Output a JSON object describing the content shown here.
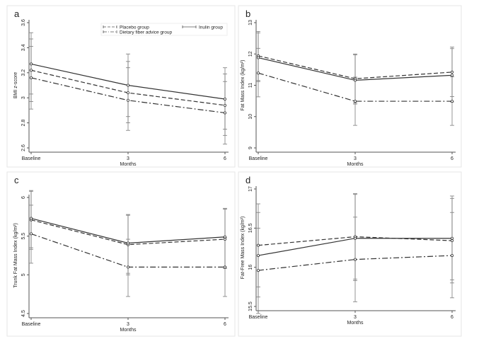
{
  "chart_data": [
    {
      "type": "line",
      "panel_label": "a",
      "xlabel": "Months",
      "ylabel": "BMI z-score",
      "categories": [
        "Baseline",
        "3",
        "6"
      ],
      "ylim": [
        2.6,
        3.6
      ],
      "yticks": [
        "2.6",
        "2.8",
        "3",
        "3.2",
        "3.4",
        "3.6"
      ],
      "legend": {
        "position": "top-right",
        "entries": [
          "Placebo group",
          "Inulin group",
          "Dietary fiber advice group"
        ]
      },
      "series": [
        {
          "name": "Placebo group",
          "style": "dashed",
          "values": [
            3.22,
            3.04,
            2.94
          ],
          "ci_low": [
            2.97,
            2.8,
            2.7
          ],
          "ci_high": [
            3.47,
            3.29,
            3.19
          ]
        },
        {
          "name": "Inulin group",
          "style": "solid",
          "values": [
            3.27,
            3.1,
            2.99
          ],
          "ci_low": [
            3.03,
            2.85,
            2.75
          ],
          "ci_high": [
            3.52,
            3.35,
            3.24
          ]
        },
        {
          "name": "Dietary fiber advice group",
          "style": "dashdot",
          "values": [
            3.16,
            2.98,
            2.88
          ],
          "ci_low": [
            2.91,
            2.74,
            2.63
          ],
          "ci_high": [
            3.41,
            3.24,
            3.13
          ]
        }
      ]
    },
    {
      "type": "line",
      "panel_label": "b",
      "xlabel": "Months",
      "ylabel": "Fat Mass Index (kg/m²)",
      "categories": [
        "Baseline",
        "3",
        "6"
      ],
      "ylim": [
        9,
        13
      ],
      "yticks": [
        "9",
        "10",
        "11",
        "12",
        "13"
      ],
      "series": [
        {
          "name": "Placebo group",
          "style": "dashed",
          "values": [
            11.94,
            11.21,
            11.42
          ],
          "ci_low": [
            11.15,
            10.44,
            10.64
          ],
          "ci_high": [
            12.72,
            12.0,
            12.22
          ]
        },
        {
          "name": "Inulin group",
          "style": "solid",
          "values": [
            11.88,
            11.16,
            11.32
          ],
          "ci_low": [
            11.12,
            10.4,
            10.47
          ],
          "ci_high": [
            12.67,
            11.97,
            12.17
          ]
        },
        {
          "name": "Dietary fiber advice group",
          "style": "dashdot",
          "values": [
            11.39,
            10.49,
            10.49
          ],
          "ci_low": [
            10.63,
            9.72,
            9.72
          ],
          "ci_high": [
            12.18,
            11.26,
            11.27
          ]
        }
      ]
    },
    {
      "type": "line",
      "panel_label": "c",
      "xlabel": "Months",
      "ylabel": "Trunk Fat Mass Index (kg/m²)",
      "categories": [
        "Baseline",
        "3",
        "6"
      ],
      "ylim": [
        4.5,
        6
      ],
      "yticks": [
        "4.5",
        "5",
        "5.5",
        "6"
      ],
      "series": [
        {
          "name": "Placebo group",
          "style": "dashed",
          "values": [
            5.71,
            5.39,
            5.46
          ],
          "ci_low": [
            5.33,
            5.0,
            5.08
          ],
          "ci_high": [
            6.08,
            5.77,
            5.85
          ]
        },
        {
          "name": "Inulin group",
          "style": "solid",
          "values": [
            5.73,
            5.41,
            5.49
          ],
          "ci_low": [
            5.35,
            5.02,
            5.1
          ],
          "ci_high": [
            6.09,
            5.78,
            5.86
          ]
        },
        {
          "name": "Dietary fiber advice group",
          "style": "dashdot",
          "values": [
            5.53,
            5.1,
            5.1
          ],
          "ci_low": [
            5.15,
            4.72,
            4.72
          ],
          "ci_high": [
            5.9,
            5.46,
            5.48
          ]
        }
      ]
    },
    {
      "type": "line",
      "panel_label": "d",
      "xlabel": "Months",
      "ylabel": "Fat-Free Mass Index (kg/m²)",
      "categories": [
        "Baseline",
        "3",
        "6"
      ],
      "ylim": [
        15.5,
        17
      ],
      "yticks": [
        "15.5",
        "16",
        "16.5",
        "17"
      ],
      "series": [
        {
          "name": "Placebo group",
          "style": "dashed",
          "values": [
            16.28,
            16.39,
            16.34
          ],
          "ci_low": [
            15.75,
            15.85,
            15.84
          ],
          "ci_high": [
            16.81,
            16.94,
            16.91
          ]
        },
        {
          "name": "Inulin group",
          "style": "solid",
          "values": [
            16.15,
            16.37,
            16.37
          ],
          "ci_low": [
            15.62,
            15.83,
            15.8
          ],
          "ci_high": [
            16.7,
            16.93,
            16.88
          ]
        },
        {
          "name": "Dietary fiber advice group",
          "style": "dashdot",
          "values": [
            15.96,
            16.1,
            16.15
          ],
          "ci_low": [
            15.41,
            15.56,
            15.61
          ],
          "ci_high": [
            16.5,
            16.64,
            16.7
          ]
        }
      ]
    }
  ],
  "colors": {
    "line": "#333333",
    "error_bar": "#7a7a7a",
    "frame": "#e6e6e6",
    "axis": "#555555"
  }
}
